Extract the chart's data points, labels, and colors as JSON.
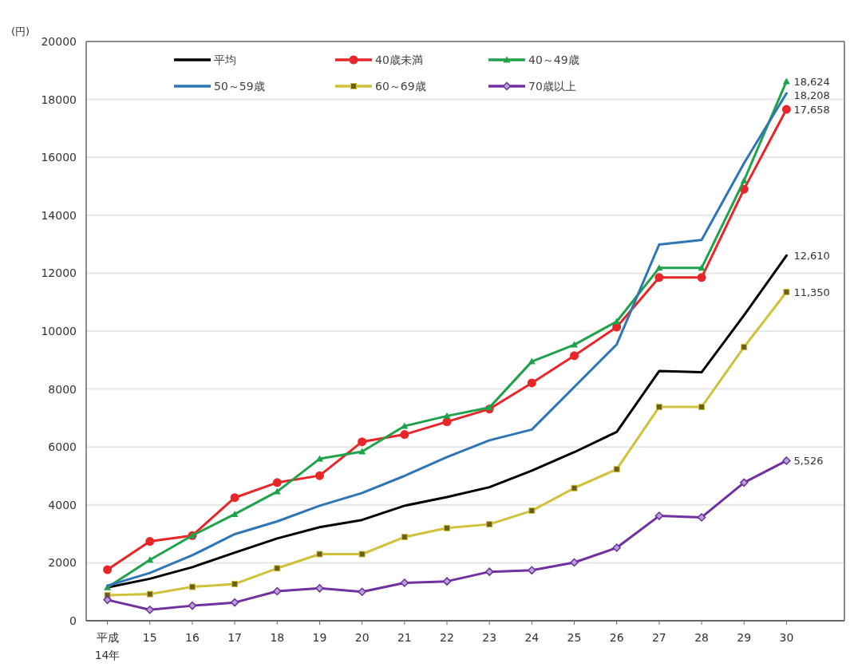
{
  "chart_data": {
    "type": "line",
    "ylabel": "(円)",
    "categories": [
      "平成\n14年",
      "15",
      "16",
      "17",
      "18",
      "19",
      "20",
      "21",
      "22",
      "23",
      "24",
      "25",
      "26",
      "27",
      "28",
      "29",
      "30"
    ],
    "ylim": [
      0,
      20000
    ],
    "yticks": [
      0,
      2000,
      4000,
      6000,
      8000,
      10000,
      12000,
      14000,
      16000,
      18000,
      20000
    ],
    "grid": "y",
    "legend": "top",
    "series": [
      {
        "name": "平均",
        "color": "#000000",
        "marker": "none",
        "values": [
          1150,
          1450,
          1850,
          2350,
          2840,
          3230,
          3480,
          3970,
          4270,
          4610,
          5180,
          5820,
          6520,
          8620,
          8580,
          10550,
          12610
        ],
        "value_labels": [
          null,
          null,
          null,
          null,
          null,
          null,
          null,
          null,
          null,
          null,
          null,
          null,
          null,
          null,
          null,
          null,
          "12,610"
        ]
      },
      {
        "name": "40歳未満",
        "color": "#e8262a",
        "marker": "circle",
        "values": [
          1760,
          2740,
          2940,
          4250,
          4770,
          5010,
          6180,
          6430,
          6870,
          7310,
          8210,
          9150,
          10140,
          11850,
          11850,
          14900,
          17658
        ],
        "value_labels": [
          null,
          null,
          null,
          null,
          null,
          null,
          null,
          null,
          null,
          null,
          null,
          null,
          null,
          null,
          null,
          null,
          "17,658"
        ]
      },
      {
        "name": "40～49歳",
        "color": "#1fa24a",
        "marker": "triangle",
        "values": [
          1150,
          2100,
          2940,
          3680,
          4460,
          5590,
          5840,
          6720,
          7070,
          7360,
          8950,
          9530,
          10330,
          12180,
          12180,
          15200,
          18624
        ],
        "value_labels": [
          null,
          null,
          null,
          null,
          null,
          null,
          null,
          null,
          null,
          null,
          null,
          null,
          null,
          null,
          null,
          null,
          "18,624"
        ]
      },
      {
        "name": "50～59歳",
        "color": "#2e75b6",
        "marker": "none",
        "values": [
          1210,
          1650,
          2260,
          2990,
          3430,
          3970,
          4410,
          5000,
          5650,
          6230,
          6600,
          8070,
          9540,
          12990,
          13150,
          15800,
          18208
        ],
        "value_labels": [
          null,
          null,
          null,
          null,
          null,
          null,
          null,
          null,
          null,
          null,
          null,
          null,
          null,
          null,
          null,
          null,
          "18,208"
        ]
      },
      {
        "name": "60～69歳",
        "color": "#cfc23a",
        "marker": "square",
        "values": [
          880,
          920,
          1170,
          1270,
          1810,
          2300,
          2300,
          2890,
          3200,
          3330,
          3800,
          4580,
          5230,
          7380,
          7380,
          9450,
          11350
        ],
        "value_labels": [
          null,
          null,
          null,
          null,
          null,
          null,
          null,
          null,
          null,
          null,
          null,
          null,
          null,
          null,
          null,
          null,
          "11,350"
        ]
      },
      {
        "name": "70歳以上",
        "color": "#7030a0",
        "marker": "diamond",
        "values": [
          720,
          380,
          520,
          630,
          1020,
          1120,
          1000,
          1310,
          1360,
          1690,
          1740,
          2010,
          2520,
          3620,
          3570,
          4770,
          5526
        ],
        "value_labels": [
          null,
          null,
          null,
          null,
          null,
          null,
          null,
          null,
          null,
          null,
          null,
          null,
          null,
          null,
          null,
          null,
          "5,526"
        ]
      }
    ]
  }
}
